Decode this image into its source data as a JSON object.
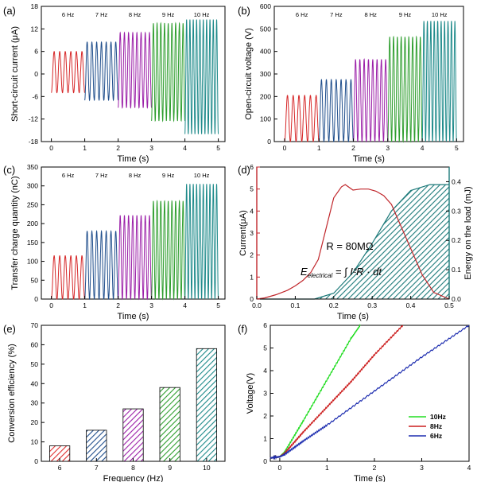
{
  "chart_data": [
    {
      "panel_label": "(a)",
      "type": "line",
      "xlabel": "Time (s)",
      "ylabel": "Short-circuit current (μA)",
      "xlim": [
        -0.3,
        5.2
      ],
      "ylim": [
        -18,
        18
      ],
      "xticks": [
        0,
        1,
        2,
        3,
        4,
        5
      ],
      "yticks": [
        -18,
        -12,
        -6,
        0,
        6,
        12,
        18
      ],
      "segments": [
        {
          "label": "6 Hz",
          "x_start": 0,
          "x_end": 1,
          "cycles": 6,
          "high": 6,
          "low": -5,
          "color": "#d62728"
        },
        {
          "label": "7 Hz",
          "x_start": 1,
          "x_end": 2,
          "cycles": 7,
          "high": 8.5,
          "low": -7,
          "color": "#1f4e8c"
        },
        {
          "label": "8 Hz",
          "x_start": 2,
          "x_end": 3,
          "cycles": 8,
          "high": 11,
          "low": -9,
          "color": "#9b1fa8"
        },
        {
          "label": "9 Hz",
          "x_start": 3,
          "x_end": 4,
          "cycles": 9,
          "high": 13.5,
          "low": -12.5,
          "color": "#2e9e2e"
        },
        {
          "label": "10 Hz",
          "x_start": 4,
          "x_end": 5,
          "cycles": 10,
          "high": 14.5,
          "low": -16,
          "color": "#1d8a8a"
        }
      ]
    },
    {
      "panel_label": "(b)",
      "type": "line",
      "xlabel": "Time (s)",
      "ylabel": "Open-circuit voltage (V)",
      "xlim": [
        -0.3,
        5.2
      ],
      "ylim": [
        0,
        600
      ],
      "xticks": [
        0,
        1,
        2,
        3,
        4,
        5
      ],
      "yticks": [
        0,
        100,
        200,
        300,
        400,
        500,
        600
      ],
      "segments": [
        {
          "label": "6 Hz",
          "x_start": 0,
          "x_end": 1,
          "cycles": 6,
          "high": 205,
          "low": 0,
          "color": "#d62728"
        },
        {
          "label": "7 Hz",
          "x_start": 1,
          "x_end": 2,
          "cycles": 7,
          "high": 275,
          "low": 0,
          "color": "#1f4e8c"
        },
        {
          "label": "8 Hz",
          "x_start": 2,
          "x_end": 3,
          "cycles": 8,
          "high": 365,
          "low": 0,
          "color": "#9b1fa8"
        },
        {
          "label": "9 Hz",
          "x_start": 3,
          "x_end": 4,
          "cycles": 9,
          "high": 465,
          "low": 0,
          "color": "#2e9e2e"
        },
        {
          "label": "10 Hz",
          "x_start": 4,
          "x_end": 5,
          "cycles": 10,
          "high": 535,
          "low": 0,
          "color": "#1d8a8a"
        }
      ]
    },
    {
      "panel_label": "(c)",
      "type": "line",
      "xlabel": "Time (s)",
      "ylabel": "Transfer charge quantity (nC)",
      "xlim": [
        -0.3,
        5.2
      ],
      "ylim": [
        0,
        350
      ],
      "xticks": [
        0,
        1,
        2,
        3,
        4,
        5
      ],
      "yticks": [
        0,
        50,
        100,
        150,
        200,
        250,
        300,
        350
      ],
      "segments": [
        {
          "label": "6 Hz",
          "x_start": 0,
          "x_end": 1,
          "cycles": 6,
          "high": 115,
          "low": 0,
          "color": "#d62728"
        },
        {
          "label": "7 Hz",
          "x_start": 1,
          "x_end": 2,
          "cycles": 7,
          "high": 180,
          "low": 0,
          "color": "#1f4e8c"
        },
        {
          "label": "8 Hz",
          "x_start": 2,
          "x_end": 3,
          "cycles": 8,
          "high": 222,
          "low": 0,
          "color": "#9b1fa8"
        },
        {
          "label": "9 Hz",
          "x_start": 3,
          "x_end": 4,
          "cycles": 9,
          "high": 260,
          "low": 0,
          "color": "#2e9e2e"
        },
        {
          "label": "10 Hz",
          "x_start": 4,
          "x_end": 5,
          "cycles": 10,
          "high": 305,
          "low": 0,
          "color": "#1d8a8a"
        }
      ]
    },
    {
      "panel_label": "(d)",
      "type": "line",
      "xlabel": "Time (s)",
      "ylabel": "Current(μA)",
      "ylabel_right": "Energy on the load (mJ)",
      "xlim": [
        0,
        0.5
      ],
      "ylim": [
        0,
        6
      ],
      "ylim_right": [
        0,
        0.45
      ],
      "xticks": [
        0.0,
        0.1,
        0.2,
        0.3,
        0.4,
        0.5
      ],
      "yticks": [
        0,
        1,
        2,
        3,
        4,
        5,
        6
      ],
      "yticks_right": [
        0.0,
        0.1,
        0.2,
        0.3,
        0.4
      ],
      "annotation_resistance": "R = 80MΩ",
      "annotation_energy_lhs": "E",
      "annotation_energy_sub": "electrical",
      "annotation_energy_rhs": "= ∫ I²R · dt",
      "current": {
        "color": "#c0262b",
        "x": [
          0.0,
          0.02,
          0.05,
          0.08,
          0.1,
          0.12,
          0.14,
          0.16,
          0.18,
          0.2,
          0.22,
          0.23,
          0.25,
          0.27,
          0.29,
          0.31,
          0.33,
          0.35,
          0.37,
          0.4,
          0.43,
          0.46,
          0.5
        ],
        "y": [
          0.0,
          0.05,
          0.2,
          0.4,
          0.6,
          0.85,
          1.2,
          1.8,
          3.2,
          4.6,
          5.1,
          5.2,
          4.95,
          5.0,
          5.0,
          4.9,
          4.7,
          4.3,
          3.5,
          2.3,
          1.1,
          0.3,
          0.0
        ]
      },
      "energy": {
        "color": "#1d7a7a",
        "x": [
          0.0,
          0.15,
          0.2,
          0.25,
          0.3,
          0.35,
          0.4,
          0.45,
          0.5
        ],
        "y": [
          0.0,
          0.0,
          0.02,
          0.09,
          0.19,
          0.3,
          0.37,
          0.39,
          0.39
        ]
      }
    },
    {
      "panel_label": "(e)",
      "type": "bar",
      "xlabel": "Frequency (Hz)",
      "ylabel": "Conversion efficiency (%)",
      "ylim": [
        0,
        70
      ],
      "yticks": [
        0,
        10,
        20,
        30,
        40,
        50,
        60,
        70
      ],
      "categories": [
        "6",
        "7",
        "8",
        "9",
        "10"
      ],
      "values": [
        8,
        16,
        27,
        38,
        58
      ],
      "colors": [
        "#e03030",
        "#1f4e8c",
        "#9b1fa8",
        "#2e9e2e",
        "#1d8a8a"
      ]
    },
    {
      "panel_label": "(f)",
      "type": "line",
      "xlabel": "Time (s)",
      "ylabel": "Voltage(V)",
      "xlim": [
        -0.2,
        4
      ],
      "ylim": [
        0,
        6
      ],
      "xticks": [
        0,
        1,
        2,
        3,
        4
      ],
      "yticks": [
        0,
        1,
        2,
        3,
        4,
        5,
        6
      ],
      "legend_position": "bottom-right",
      "series": [
        {
          "name": "10Hz",
          "color": "#22dd22",
          "x": [
            -0.2,
            0.0,
            0.1,
            0.5,
            1.0,
            1.5,
            1.7
          ],
          "y": [
            0.15,
            0.2,
            0.4,
            1.8,
            3.6,
            5.4,
            6.0
          ]
        },
        {
          "name": "8Hz",
          "color": "#cc1f1f",
          "x": [
            -0.2,
            0.0,
            0.1,
            0.5,
            1.0,
            1.5,
            2.0,
            2.6
          ],
          "y": [
            0.15,
            0.2,
            0.35,
            1.3,
            2.4,
            3.5,
            4.7,
            6.0
          ]
        },
        {
          "name": "6Hz",
          "color": "#1f2fb0",
          "x": [
            -0.2,
            0.0,
            0.1,
            0.5,
            1.0,
            2.0,
            3.0,
            4.0
          ],
          "y": [
            0.15,
            0.2,
            0.3,
            0.9,
            1.6,
            3.1,
            4.6,
            6.0
          ]
        }
      ]
    }
  ]
}
